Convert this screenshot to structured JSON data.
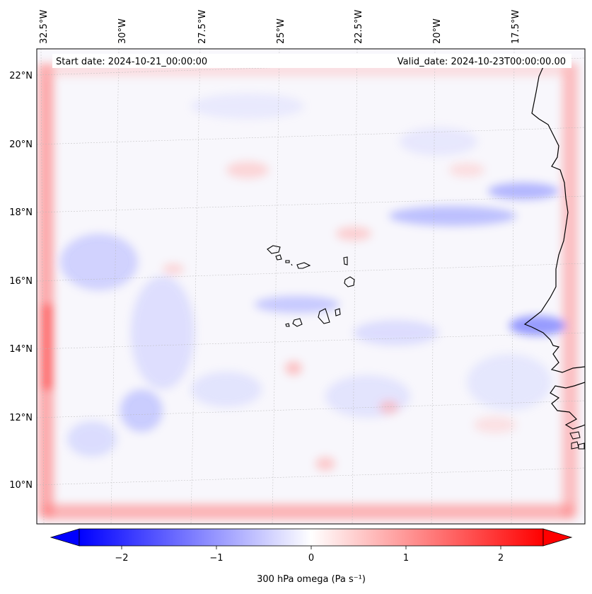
{
  "map": {
    "start_date_label": "Start date: 2024-10-21_00:00:00",
    "valid_date_label": "Valid_date: 2024-10-23T00:00:00.00",
    "lon_labels": [
      "32.5°W",
      "30°W",
      "27.5°W",
      "25°W",
      "22.5°W",
      "20°W",
      "17.5°W"
    ],
    "lat_labels": [
      "22°N",
      "20°N",
      "18°N",
      "16°N",
      "14°N",
      "12°N",
      "10°N"
    ],
    "gridlines": true,
    "colormap": "bwr",
    "colors": {
      "negative": "#0000ff",
      "neutral": "#ffffff",
      "positive": "#ff0000",
      "coastline": "#000000"
    }
  },
  "colorbar": {
    "label": "300 hPa omega (Pa s⁻¹)",
    "tick_labels": [
      "−2",
      "−1",
      "0",
      "1",
      "2"
    ],
    "tick_values": [
      -2,
      -1,
      0,
      1,
      2
    ],
    "range": [
      -2.6,
      2.6
    ],
    "extend": "both"
  }
}
